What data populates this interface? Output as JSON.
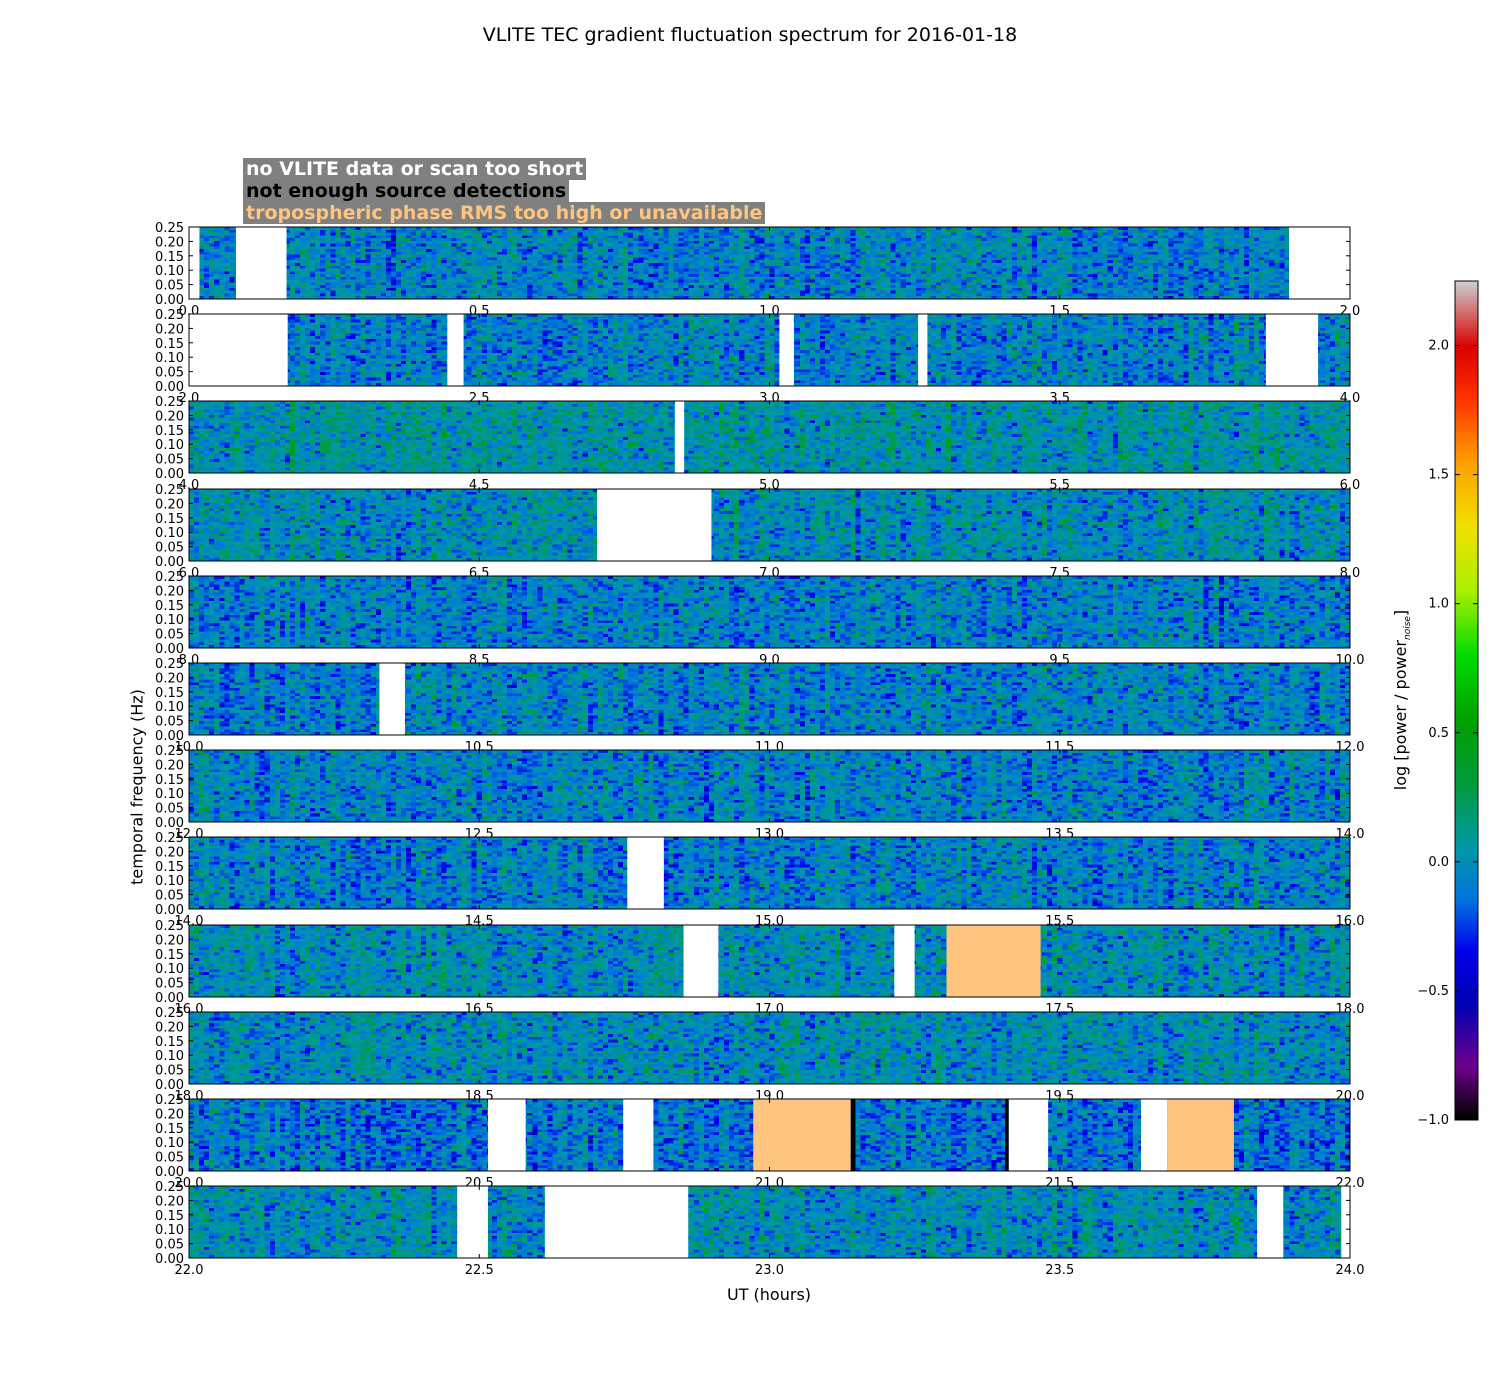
{
  "title": "VLITE TEC gradient fluctuation spectrum for 2016-01-18",
  "legend": [
    {
      "label": "no VLITE data or scan too short",
      "text_color": "#ffffff"
    },
    {
      "label": "not enough source detections",
      "text_color": "#000000"
    },
    {
      "label": "tropospheric phase RMS too high or unavailable",
      "text_color": "#ffc47e"
    }
  ],
  "ylabel": "temporal frequency (Hz)",
  "xlabel": "UT (hours)",
  "colorbar": {
    "label_main": "log [power / power",
    "label_sub": "noise",
    "label_end": "]",
    "range": [
      -1.0,
      2.25
    ],
    "ticks": [
      "2.0",
      "1.5",
      "1.0",
      "0.5",
      "0.0",
      "−0.5",
      "−1.0"
    ]
  },
  "chart_data": {
    "type": "heatmap",
    "title": "VLITE TEC gradient fluctuation spectrum for 2016-01-18",
    "xlabel": "UT (hours)",
    "ylabel": "temporal frequency (Hz)",
    "colorbar_label": "log [power / power_noise]",
    "colorbar_range": [
      -1.0,
      2.25
    ],
    "ylim": [
      0,
      0.25
    ],
    "y_ticks": [
      "0.00",
      "0.05",
      "0.10",
      "0.15",
      "0.20",
      "0.25"
    ],
    "colors": {
      "no_data": "#ffffff",
      "few_detections": "#000000",
      "tropo_high": "#ffc47e"
    },
    "panels": [
      {
        "x": [
          0,
          2
        ],
        "x_ticks": [
          "0.0",
          "0.5",
          "1.0",
          "1.5",
          "2.0"
        ],
        "mean_level": -0.05,
        "no_data": [
          [
            0.0,
            0.018
          ],
          [
            0.081,
            0.168
          ],
          [
            1.895,
            2.0
          ]
        ],
        "few_detections": [],
        "tropo_high": []
      },
      {
        "x": [
          2,
          4
        ],
        "x_ticks": [
          "2.0",
          "2.5",
          "3.0",
          "3.5",
          "4.0"
        ],
        "mean_level": -0.05,
        "no_data": [
          [
            2.0,
            2.17
          ],
          [
            2.445,
            2.473
          ],
          [
            3.017,
            3.042
          ],
          [
            3.256,
            3.272
          ],
          [
            3.855,
            3.945
          ]
        ],
        "few_detections": [],
        "tropo_high": []
      },
      {
        "x": [
          4,
          6
        ],
        "x_ticks": [
          "4.0",
          "4.5",
          "5.0",
          "5.5",
          "6.0"
        ],
        "mean_level": 0.05,
        "no_data": [
          [
            4.837,
            4.853
          ]
        ],
        "few_detections": [],
        "tropo_high": []
      },
      {
        "x": [
          6,
          8
        ],
        "x_ticks": [
          "6.0",
          "6.5",
          "7.0",
          "7.5",
          "8.0"
        ],
        "mean_level": 0.0,
        "no_data": [
          [
            6.703,
            6.9
          ]
        ],
        "few_detections": [],
        "tropo_high": []
      },
      {
        "x": [
          8,
          10
        ],
        "x_ticks": [
          "8.0",
          "8.5",
          "9.0",
          "9.5",
          "10.0"
        ],
        "mean_level": -0.05,
        "no_data": [],
        "few_detections": [],
        "tropo_high": []
      },
      {
        "x": [
          10,
          12
        ],
        "x_ticks": [
          "10.0",
          "10.5",
          "11.0",
          "11.5",
          "12.0"
        ],
        "mean_level": -0.05,
        "no_data": [
          [
            10.328,
            10.372
          ]
        ],
        "few_detections": [],
        "tropo_high": []
      },
      {
        "x": [
          12,
          14
        ],
        "x_ticks": [
          "12.0",
          "12.5",
          "13.0",
          "13.5",
          "14.0"
        ],
        "mean_level": -0.05,
        "no_data": [],
        "few_detections": [],
        "tropo_high": []
      },
      {
        "x": [
          14,
          16
        ],
        "x_ticks": [
          "14.0",
          "14.5",
          "15.0",
          "15.5",
          "16.0"
        ],
        "mean_level": -0.05,
        "no_data": [
          [
            14.755,
            14.818
          ]
        ],
        "few_detections": [],
        "tropo_high": []
      },
      {
        "x": [
          16,
          18
        ],
        "x_ticks": [
          "16.0",
          "16.5",
          "17.0",
          "17.5",
          "18.0"
        ],
        "mean_level": 0.0,
        "no_data": [
          [
            16.852,
            16.912
          ],
          [
            17.215,
            17.25
          ]
        ],
        "few_detections": [],
        "tropo_high": [
          [
            17.305,
            17.467
          ]
        ]
      },
      {
        "x": [
          18,
          20
        ],
        "x_ticks": [
          "18.0",
          "18.5",
          "19.0",
          "19.5",
          "20.0"
        ],
        "mean_level": 0.0,
        "no_data": [],
        "few_detections": [],
        "tropo_high": []
      },
      {
        "x": [
          20,
          22
        ],
        "x_ticks": [
          "20.0",
          "20.5",
          "21.0",
          "21.5",
          "22.0"
        ],
        "mean_level": -0.1,
        "no_data": [
          [
            20.515,
            20.58
          ],
          [
            20.748,
            20.8
          ],
          [
            21.412,
            21.48
          ],
          [
            21.64,
            21.685
          ]
        ],
        "few_detections": [
          [
            21.14,
            21.148
          ],
          [
            21.406,
            21.412
          ]
        ],
        "tropo_high": [
          [
            20.972,
            21.14
          ],
          [
            21.685,
            21.8
          ]
        ]
      },
      {
        "x": [
          22,
          24
        ],
        "x_ticks": [
          "22.0",
          "22.5",
          "23.0",
          "23.5",
          "24.0"
        ],
        "mean_level": 0.0,
        "no_data": [
          [
            22.462,
            22.515
          ],
          [
            22.613,
            22.86
          ],
          [
            23.84,
            23.885
          ],
          [
            23.985,
            24.0
          ]
        ],
        "few_detections": [],
        "tropo_high": []
      }
    ]
  }
}
